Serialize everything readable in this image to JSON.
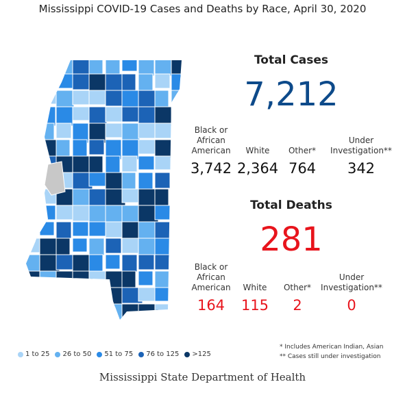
{
  "title": "Mississippi COVID-19 Cases and Deaths by Race, April 30, 2020",
  "cases": {
    "heading": "Total Cases",
    "total": "7,212",
    "groups": [
      {
        "label": [
          "Black or",
          "African",
          "American"
        ],
        "value": "3,742"
      },
      {
        "label": [
          "White"
        ],
        "value": "2,364"
      },
      {
        "label": [
          "Other*"
        ],
        "value": "764"
      },
      {
        "label": [
          "Under",
          "Investigation**"
        ],
        "value": "342"
      }
    ]
  },
  "deaths": {
    "heading": "Total Deaths",
    "total": "281",
    "groups": [
      {
        "label": [
          "Black or",
          "African",
          "American"
        ],
        "value": "164"
      },
      {
        "label": [
          "White"
        ],
        "value": "115"
      },
      {
        "label": [
          "Other*"
        ],
        "value": "2"
      },
      {
        "label": [
          "Under",
          "Investigation**"
        ],
        "value": "0"
      }
    ]
  },
  "legend": [
    {
      "label": "1 to 25",
      "color": "#a9d4f7"
    },
    {
      "label": "26 to 50",
      "color": "#64b1f0"
    },
    {
      "label": "51 to 75",
      "color": "#2a8ae6"
    },
    {
      "label": "76 to 125",
      "color": "#1c63b6"
    },
    {
      "label": ">125",
      "color": "#0b3766"
    }
  ],
  "footnotes": [
    "* Includes American Indian, Asian",
    "** Cases still under investigation"
  ],
  "footer": "Mississippi State Department of Health"
}
